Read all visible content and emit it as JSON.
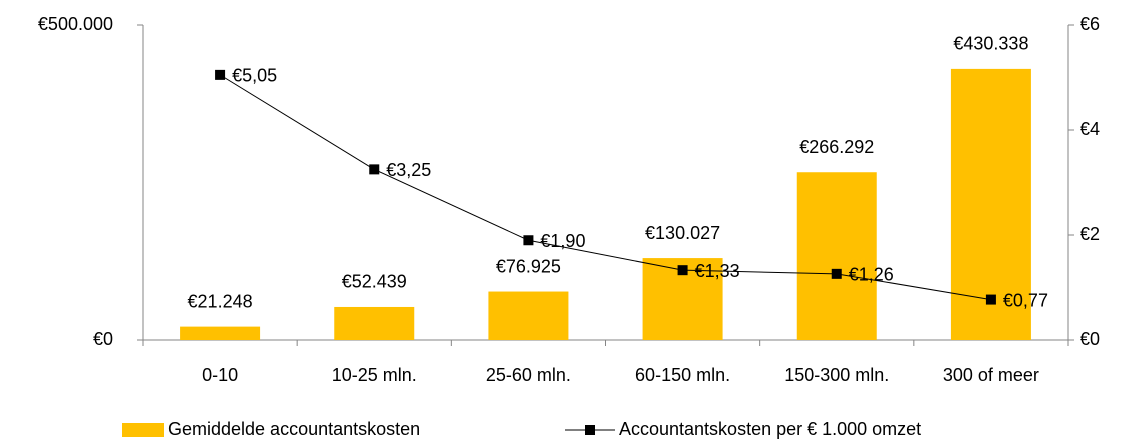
{
  "chart_data": {
    "type": "bar",
    "categories": [
      "0-10",
      "10-25 mln.",
      "25-60 mln.",
      "60-150 mln.",
      "150-300 mln.",
      "300 of meer"
    ],
    "series": [
      {
        "name": "Gemiddelde accountantskosten",
        "type": "bar",
        "color": "#FFC000",
        "values": [
          21248,
          52439,
          76925,
          130027,
          266292,
          430338
        ],
        "value_labels": [
          "€21.248",
          "€52.439",
          "€76.925",
          "€130.027",
          "€266.292",
          "€430.338"
        ]
      },
      {
        "name": "Accountantskosten per € 1.000 omzet",
        "type": "line",
        "axis": "y2",
        "color": "#000000",
        "values": [
          5.05,
          3.25,
          1.9,
          1.33,
          1.26,
          0.77
        ],
        "value_labels": [
          "€5,05",
          "€3,25",
          "€1,90",
          "€1,33",
          "€1,26",
          "€0,77"
        ]
      }
    ],
    "ylim": [
      0,
      500000
    ],
    "yticks": [
      {
        "value": 0,
        "label": "€0"
      },
      {
        "value": 500000,
        "label": "€500.000"
      }
    ],
    "y2lim": [
      0,
      6
    ],
    "y2ticks": [
      {
        "value": 0,
        "label": "€0"
      },
      {
        "value": 2,
        "label": "€2"
      },
      {
        "value": 4,
        "label": "€4"
      },
      {
        "value": 6,
        "label": "€6"
      }
    ],
    "legend": "bottom"
  }
}
